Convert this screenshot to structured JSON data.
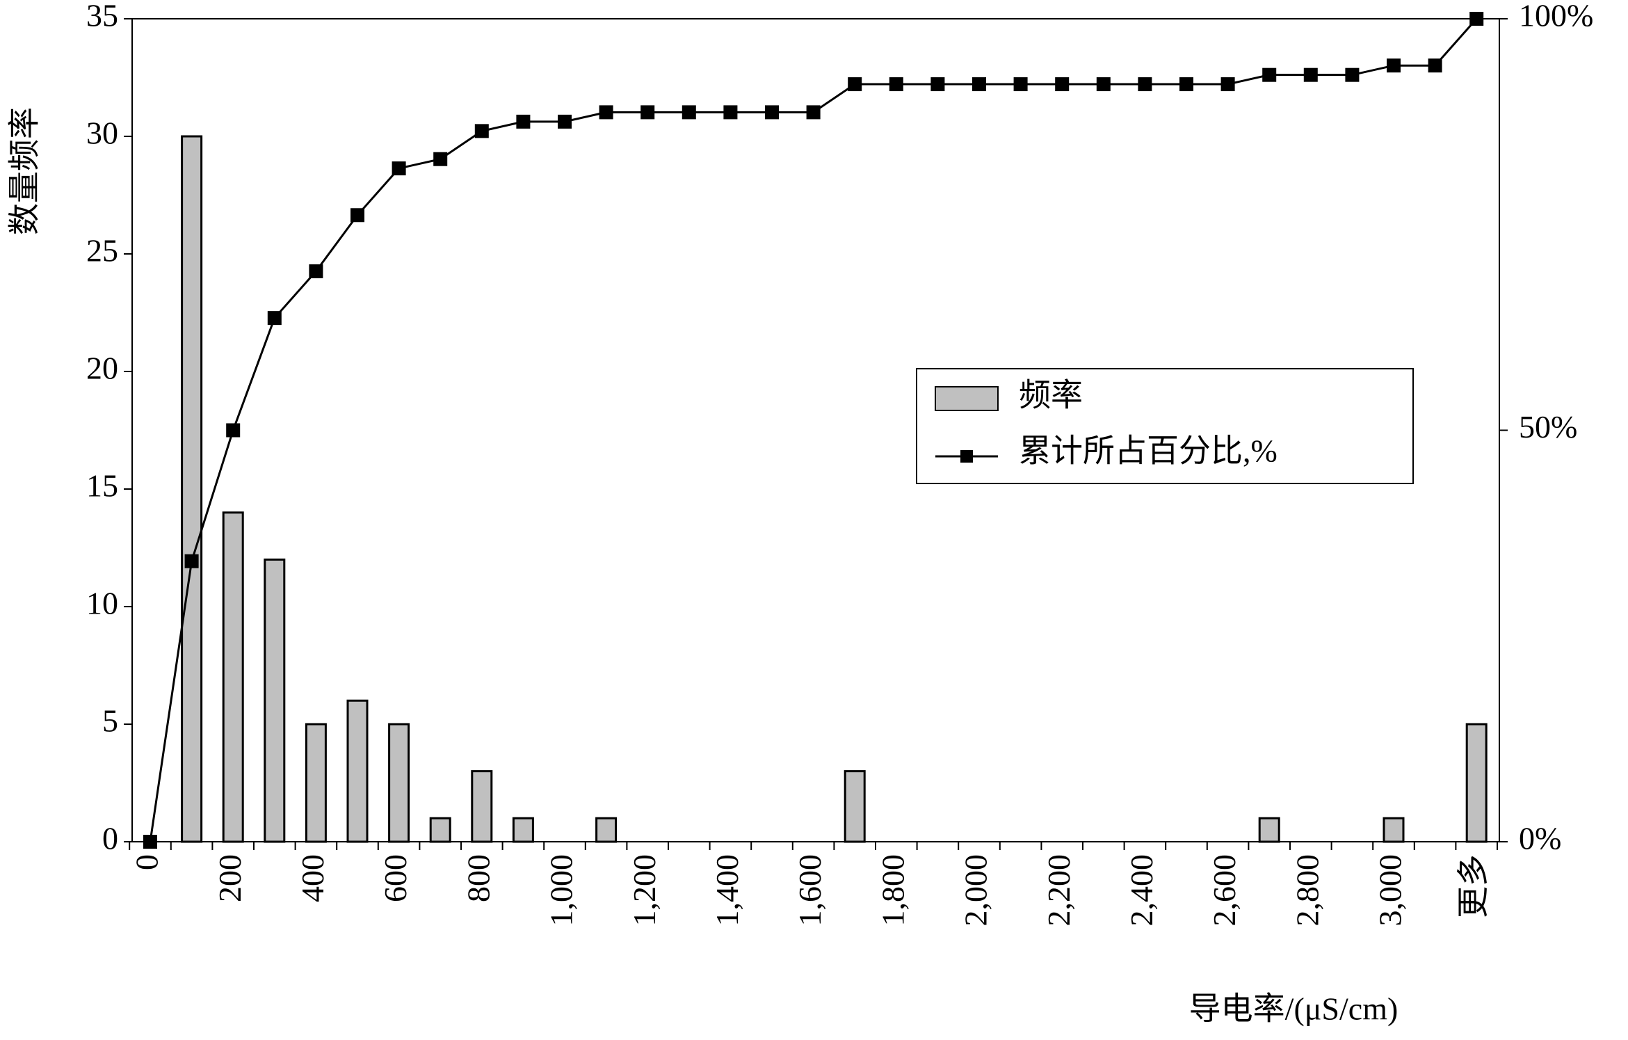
{
  "chart_data": {
    "type": "pareto",
    "x_label": "导电率/(μS/cm)",
    "y_label": "数量频率",
    "categories": [
      "0",
      null,
      "200",
      null,
      "400",
      null,
      "600",
      null,
      "800",
      null,
      "1,000",
      null,
      "1,200",
      null,
      "1,400",
      null,
      "1,600",
      null,
      "1,800",
      null,
      "2,000",
      null,
      "2,200",
      null,
      "2,400",
      null,
      "2,600",
      null,
      "2,800",
      null,
      "3,000",
      null,
      "更多"
    ],
    "series": [
      {
        "name": "频率",
        "type": "bar",
        "color": "#c0c0c0",
        "values": [
          0,
          30,
          14,
          12,
          5,
          6,
          5,
          1,
          3,
          1,
          0,
          1,
          0,
          0,
          0,
          0,
          0,
          3,
          0,
          0,
          0,
          0,
          0,
          0,
          0,
          0,
          0,
          1,
          0,
          0,
          1,
          0,
          5
        ]
      },
      {
        "name": "累计所占百分比,%",
        "type": "line",
        "axis": "y2",
        "color": "#000000",
        "values": [
          0,
          34.09,
          50,
          63.64,
          69.32,
          76.14,
          81.82,
          82.95,
          86.36,
          87.5,
          87.5,
          88.64,
          88.64,
          88.64,
          88.64,
          88.64,
          88.64,
          92.05,
          92.05,
          92.05,
          92.05,
          92.05,
          92.05,
          92.05,
          92.05,
          92.05,
          92.05,
          93.18,
          93.18,
          93.18,
          94.32,
          94.32,
          100
        ]
      }
    ],
    "ylim": [
      0,
      35
    ],
    "yticks": [
      0,
      5,
      10,
      15,
      20,
      25,
      30,
      35
    ],
    "y2lim": [
      0,
      100
    ],
    "y2ticks": [
      {
        "value": 0,
        "label": "0%"
      },
      {
        "value": 50,
        "label": "50%"
      },
      {
        "value": 100,
        "label": "100%"
      }
    ],
    "grid": false
  }
}
